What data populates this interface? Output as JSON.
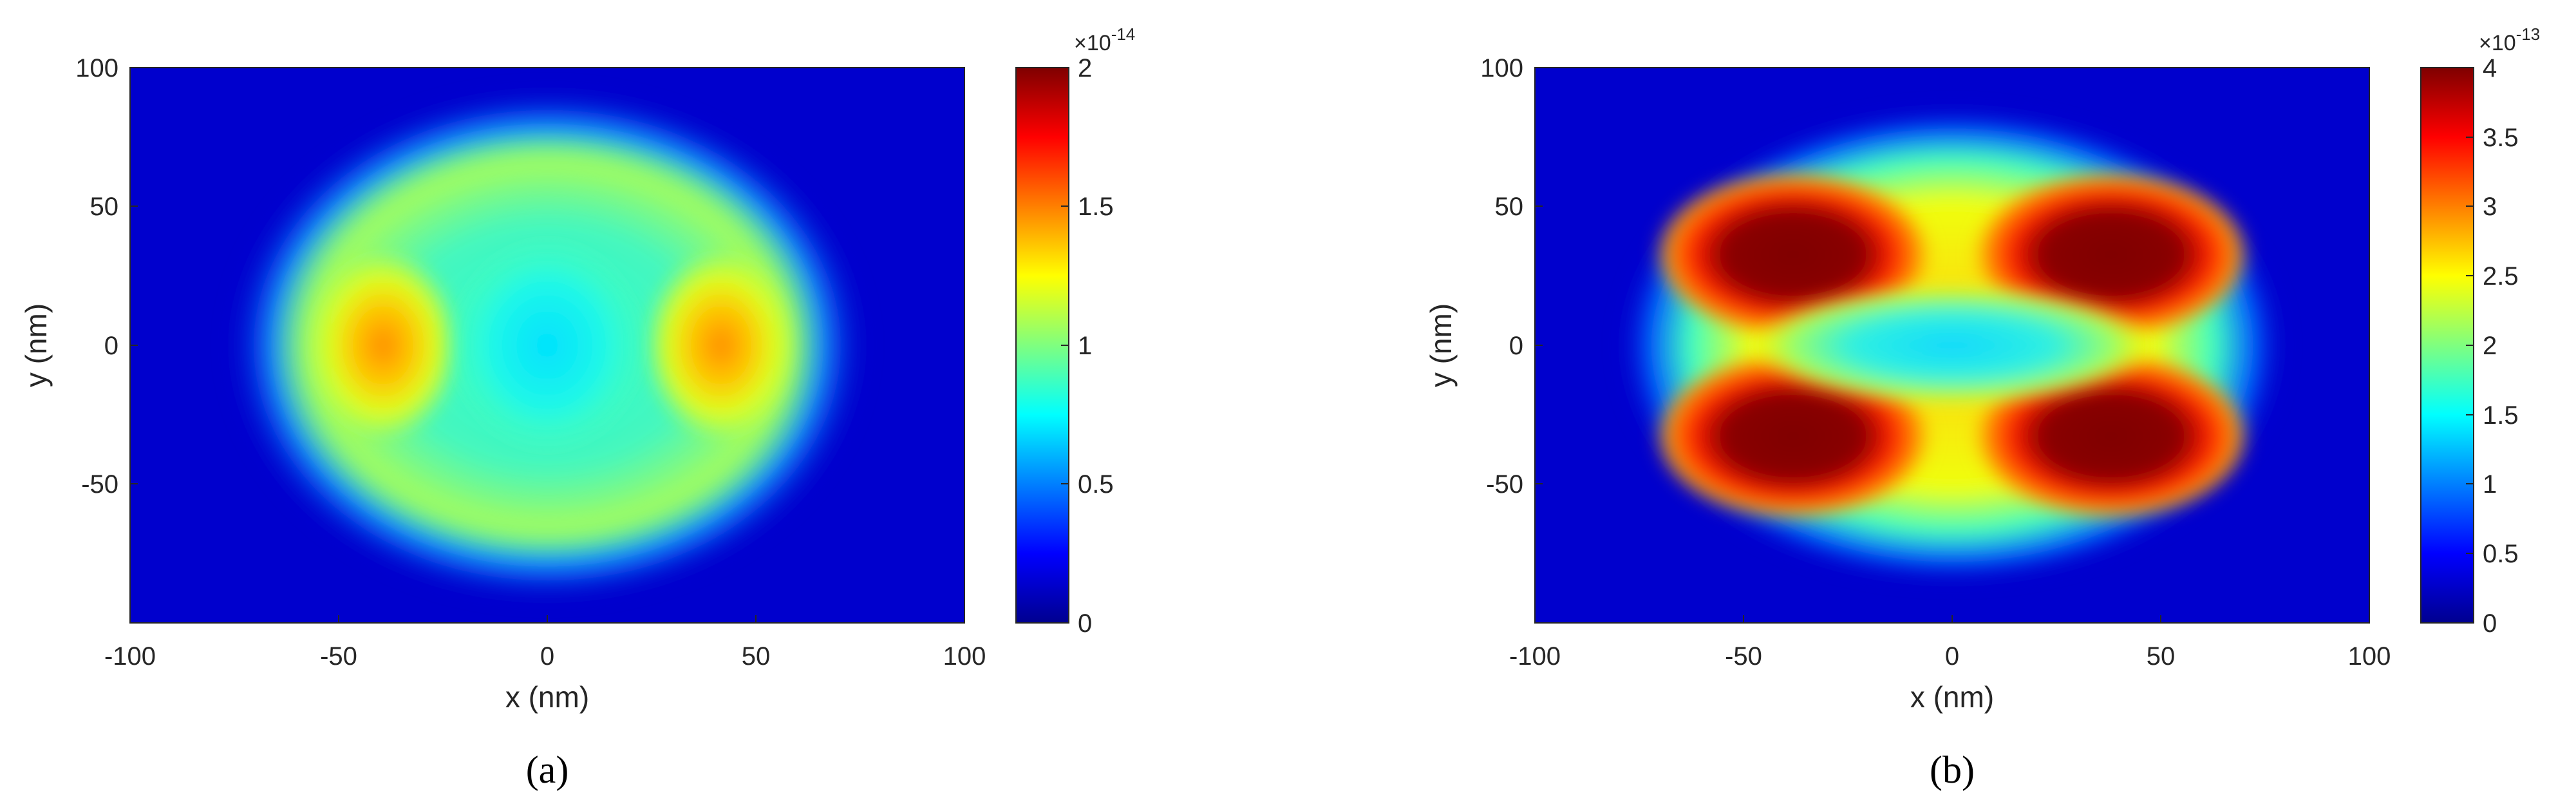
{
  "chart_data": [
    {
      "type": "heatmap",
      "panel_label": "(a)",
      "xlabel": "x (nm)",
      "ylabel": "y (nm)",
      "xlim": [
        -100,
        100
      ],
      "ylim": [
        -100,
        100
      ],
      "x_ticks": [
        "-100",
        "-50",
        "0",
        "50",
        "100"
      ],
      "y_ticks": [
        "100",
        "50",
        "0",
        "-50"
      ],
      "colorbar": {
        "colormap": "jet",
        "range": [
          0,
          2
        ],
        "ticks": [
          "2",
          "1.5",
          "1",
          "0.5",
          "0"
        ],
        "exponent_label": "×10",
        "exponent_power": "-14"
      },
      "features": [
        {
          "kind": "background-ellipse",
          "center": [
            0,
            0
          ],
          "semi_axes": [
            70,
            60
          ],
          "value": 0.9
        },
        {
          "kind": "central-shell",
          "center": [
            0,
            0
          ],
          "semi_axes": [
            55,
            50
          ],
          "value": 1.15
        },
        {
          "kind": "local-max",
          "center": [
            -40,
            0
          ],
          "value": 1.6
        },
        {
          "kind": "local-max",
          "center": [
            40,
            0
          ],
          "value": 1.6
        },
        {
          "kind": "local-min",
          "center": [
            0,
            0
          ],
          "value": 0.8
        }
      ]
    },
    {
      "type": "heatmap",
      "panel_label": "(b)",
      "xlabel": "x (nm)",
      "ylabel": "y (nm)",
      "xlim": [
        -100,
        100
      ],
      "ylim": [
        -100,
        100
      ],
      "x_ticks": [
        "-100",
        "-50",
        "0",
        "50",
        "100"
      ],
      "y_ticks": [
        "100",
        "50",
        "0",
        "-50"
      ],
      "colorbar": {
        "colormap": "jet",
        "range": [
          0,
          4
        ],
        "ticks": [
          "4",
          "3.5",
          "3",
          "2.5",
          "2",
          "1.5",
          "1",
          "0.5",
          "0"
        ],
        "exponent_label": "×10",
        "exponent_power": "-13"
      },
      "features": [
        {
          "kind": "background-ellipse",
          "center": [
            0,
            0
          ],
          "semi_axes": [
            75,
            55
          ],
          "value": 1.8
        },
        {
          "kind": "local-max",
          "center": [
            -40,
            30
          ],
          "value": 4.0
        },
        {
          "kind": "local-max",
          "center": [
            40,
            30
          ],
          "value": 4.0
        },
        {
          "kind": "local-max",
          "center": [
            -40,
            -30
          ],
          "value": 4.0
        },
        {
          "kind": "local-max",
          "center": [
            40,
            -30
          ],
          "value": 4.0
        },
        {
          "kind": "local-min",
          "center": [
            0,
            0
          ],
          "value": 1.6
        }
      ]
    }
  ]
}
